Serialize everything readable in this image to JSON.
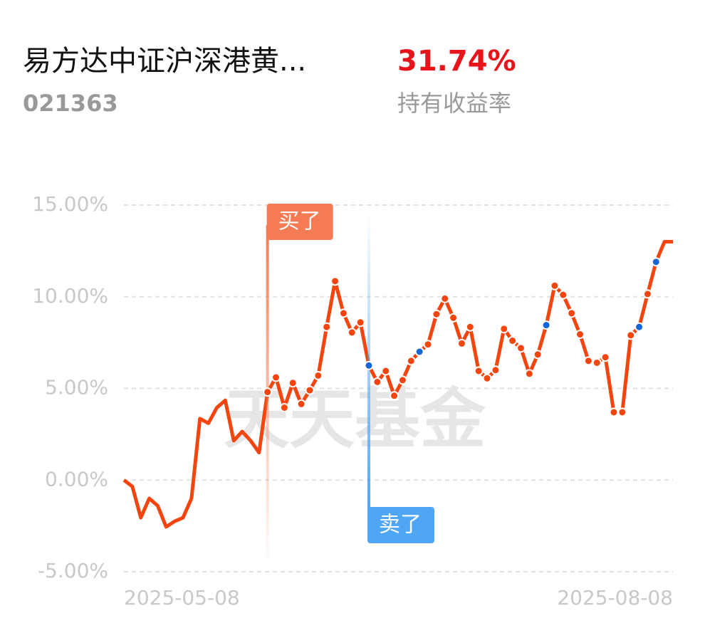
{
  "header": {
    "fund_name": "易方达中证沪深港黄...",
    "fund_code": "021363",
    "return_value": "31.74%",
    "return_label": "持有收益率"
  },
  "chart_data": {
    "type": "line",
    "watermark": "天天基金",
    "categories": [
      "2025-05-08",
      null,
      null,
      null,
      null,
      null,
      null,
      null,
      null,
      null,
      null,
      null,
      null,
      null,
      null,
      null,
      null,
      null,
      null,
      null,
      null,
      null,
      null,
      null,
      null,
      null,
      null,
      null,
      null,
      null,
      null,
      null,
      null,
      null,
      null,
      null,
      null,
      null,
      null,
      null,
      null,
      null,
      null,
      null,
      null,
      null,
      null,
      null,
      null,
      null,
      null,
      null,
      null,
      null,
      null,
      null,
      null,
      null,
      null,
      null,
      null,
      null,
      null,
      null,
      null,
      "2025-08-08"
    ],
    "series": [
      {
        "color": "#f4450f",
        "values": [
          0,
          -0.35,
          -2.05,
          -1.0,
          -1.4,
          -2.55,
          -2.25,
          -2.05,
          -1.0,
          3.35,
          3.1,
          3.95,
          4.35,
          2.15,
          2.65,
          2.15,
          1.5,
          4.8,
          5.6,
          3.95,
          5.3,
          4.15,
          4.9,
          5.7,
          8.35,
          10.85,
          9.1,
          8.05,
          8.6,
          6.25,
          5.35,
          5.95,
          4.6,
          5.45,
          6.5,
          7.0,
          7.4,
          9.05,
          9.9,
          8.85,
          7.45,
          8.35,
          5.95,
          5.55,
          6.0,
          8.25,
          7.6,
          7.2,
          5.8,
          6.85,
          8.45,
          10.6,
          10.1,
          9.1,
          7.95,
          6.5,
          6.4,
          6.7,
          3.7,
          3.7,
          7.9,
          8.35,
          10.15,
          11.9,
          13.0,
          13.0
        ],
        "marker_colors": [
          null,
          null,
          null,
          null,
          null,
          null,
          null,
          null,
          null,
          null,
          null,
          null,
          null,
          null,
          null,
          null,
          null,
          "#f4450f",
          "#f4450f",
          "#f4450f",
          "#f4450f",
          "#f4450f",
          "#f4450f",
          "#f4450f",
          "#f4450f",
          "#f4450f",
          "#f4450f",
          "#f4450f",
          "#f4450f",
          "#1565d8",
          "#f4450f",
          "#f4450f",
          "#f4450f",
          "#f4450f",
          "#f4450f",
          "#1565d8",
          "#f4450f",
          "#f4450f",
          "#f4450f",
          "#f4450f",
          "#f4450f",
          "#f4450f",
          "#f4450f",
          "#f4450f",
          "#f4450f",
          "#f4450f",
          "#f4450f",
          "#f4450f",
          "#f4450f",
          "#f4450f",
          "#1565d8",
          "#f4450f",
          "#f4450f",
          "#f4450f",
          "#f4450f",
          "#f4450f",
          "#f4450f",
          "#f4450f",
          "#f4450f",
          "#f4450f",
          "#f4450f",
          "#1565d8",
          "#f4450f",
          "#1565d8",
          null,
          null
        ]
      }
    ],
    "annotations": [
      {
        "label": "买了",
        "index": 17,
        "color": "#f47b54"
      },
      {
        "label": "卖了",
        "index": 29,
        "color": "#4ea6f5"
      }
    ],
    "ylim": [
      -5,
      15
    ],
    "yticks": [
      {
        "value": -5,
        "label": "-5.00%"
      },
      {
        "value": 0,
        "label": "0.00%"
      },
      {
        "value": 5,
        "label": "5.00%"
      },
      {
        "value": 10,
        "label": "10.00%"
      },
      {
        "value": 15,
        "label": "15.00%"
      }
    ],
    "grid": true
  }
}
